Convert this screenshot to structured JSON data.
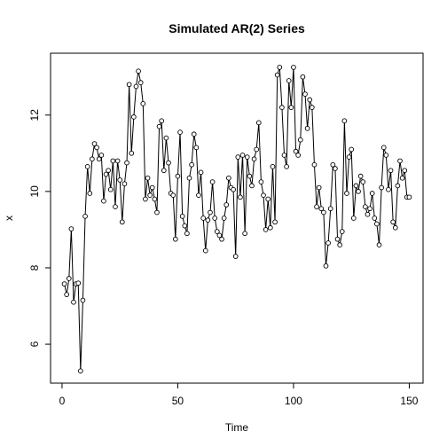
{
  "chart_data": {
    "type": "line",
    "title": "Simulated AR(2) Series",
    "xlabel": "Time",
    "ylabel": "x",
    "color": "#000000",
    "markers": true,
    "x": [
      1,
      2,
      3,
      4,
      5,
      6,
      7,
      8,
      9,
      10,
      11,
      12,
      13,
      14,
      15,
      16,
      17,
      18,
      19,
      20,
      21,
      22,
      23,
      24,
      25,
      26,
      27,
      28,
      29,
      30,
      31,
      32,
      33,
      34,
      35,
      36,
      37,
      38,
      39,
      40,
      41,
      42,
      43,
      44,
      45,
      46,
      47,
      48,
      49,
      50,
      51,
      52,
      53,
      54,
      55,
      56,
      57,
      58,
      59,
      60,
      61,
      62,
      63,
      64,
      65,
      66,
      67,
      68,
      69,
      70,
      71,
      72,
      73,
      74,
      75,
      76,
      77,
      78,
      79,
      80,
      81,
      82,
      83,
      84,
      85,
      86,
      87,
      88,
      89,
      90,
      91,
      92,
      93,
      94,
      95,
      96,
      97,
      98,
      99,
      100,
      101,
      102,
      103,
      104,
      105,
      106,
      107,
      108,
      109,
      110,
      111,
      112,
      113,
      114,
      115,
      116,
      117,
      118,
      119,
      120,
      121,
      122,
      123,
      124,
      125,
      126,
      127,
      128,
      129,
      130,
      131,
      132,
      133,
      134,
      135,
      136,
      137,
      138,
      139,
      140,
      141,
      142,
      143,
      144,
      145,
      146,
      147,
      148,
      149,
      150
    ],
    "values": [
      7.58,
      7.3,
      7.72,
      9.02,
      7.1,
      7.58,
      7.6,
      5.3,
      7.15,
      9.35,
      10.65,
      9.95,
      10.85,
      11.25,
      11.15,
      10.85,
      10.95,
      9.75,
      10.45,
      10.55,
      10.05,
      10.8,
      9.6,
      10.8,
      10.3,
      9.2,
      10.2,
      10.75,
      12.8,
      11.0,
      11.95,
      12.75,
      13.15,
      12.85,
      12.3,
      9.8,
      10.35,
      9.9,
      10.1,
      9.8,
      9.45,
      11.7,
      11.85,
      10.55,
      11.4,
      10.75,
      9.95,
      9.9,
      8.75,
      10.4,
      11.55,
      9.35,
      9.1,
      8.9,
      10.35,
      10.7,
      11.5,
      11.15,
      9.9,
      10.5,
      9.3,
      8.45,
      9.25,
      9.45,
      10.25,
      9.3,
      8.95,
      8.85,
      8.75,
      9.3,
      9.65,
      10.35,
      10.1,
      10.05,
      8.3,
      10.9,
      9.85,
      10.95,
      8.9,
      10.9,
      10.4,
      10.15,
      10.85,
      11.1,
      11.8,
      10.25,
      9.9,
      9.0,
      9.8,
      9.05,
      10.65,
      9.2,
      13.05,
      13.25,
      12.2,
      10.95,
      10.65,
      12.9,
      12.2,
      13.25,
      11.05,
      10.95,
      11.35,
      13.0,
      12.55,
      11.65,
      12.4,
      12.2,
      10.7,
      9.6,
      10.1,
      9.55,
      9.45,
      8.05,
      8.65,
      9.55,
      10.7,
      10.6,
      8.75,
      8.6,
      8.95,
      11.85,
      9.95,
      10.9,
      11.1,
      9.3,
      10.15,
      10.0,
      10.4,
      10.25,
      9.6,
      9.4,
      9.55,
      9.95,
      9.3,
      9.15,
      8.6,
      10.1,
      11.15,
      10.95,
      10.05,
      10.55,
      9.2,
      9.05,
      10.15,
      10.8,
      10.35,
      10.55,
      9.85,
      9.85
    ],
    "xlim": [
      -4.96,
      155.96
    ],
    "ylim": [
      4.98,
      13.62
    ],
    "xticks": [
      0,
      50,
      100,
      150
    ],
    "yticks": [
      6,
      8,
      10,
      12
    ]
  }
}
